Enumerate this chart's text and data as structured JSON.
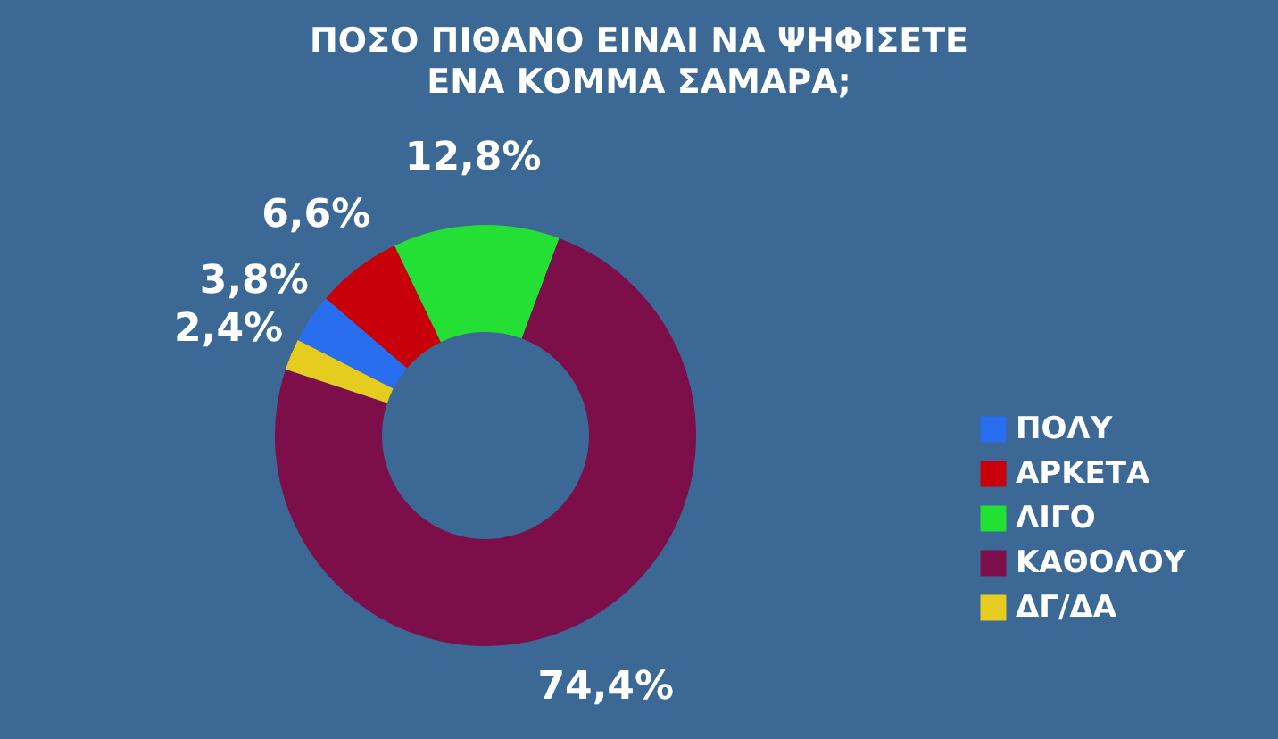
{
  "chart_data": {
    "type": "donut",
    "title": "ΠΟΣΟ ΠΙΘΑΝΟ ΕΙΝΑΙ ΝΑ ΨΗΦΙΣΕΤΕ ΕΝΑ ΚΟΜΜΑ ΣΑΜΑΡΑ;",
    "categories": [
      "ΠΟΛΥ",
      "ΑΡΚΕΤΑ",
      "ΛΙΓΟ",
      "ΚΑΘΟΛΟΥ",
      "ΔΓ/ΔΑ"
    ],
    "values": [
      3.8,
      6.6,
      12.8,
      74.4,
      2.4
    ],
    "colors": [
      "#2a6ef0",
      "#c8000a",
      "#24e034",
      "#7c0f4a",
      "#e6cc1e"
    ],
    "value_labels": [
      "3,8%",
      "6,6%",
      "12,8%",
      "74,4%",
      "2,4%"
    ],
    "legend": "right"
  }
}
